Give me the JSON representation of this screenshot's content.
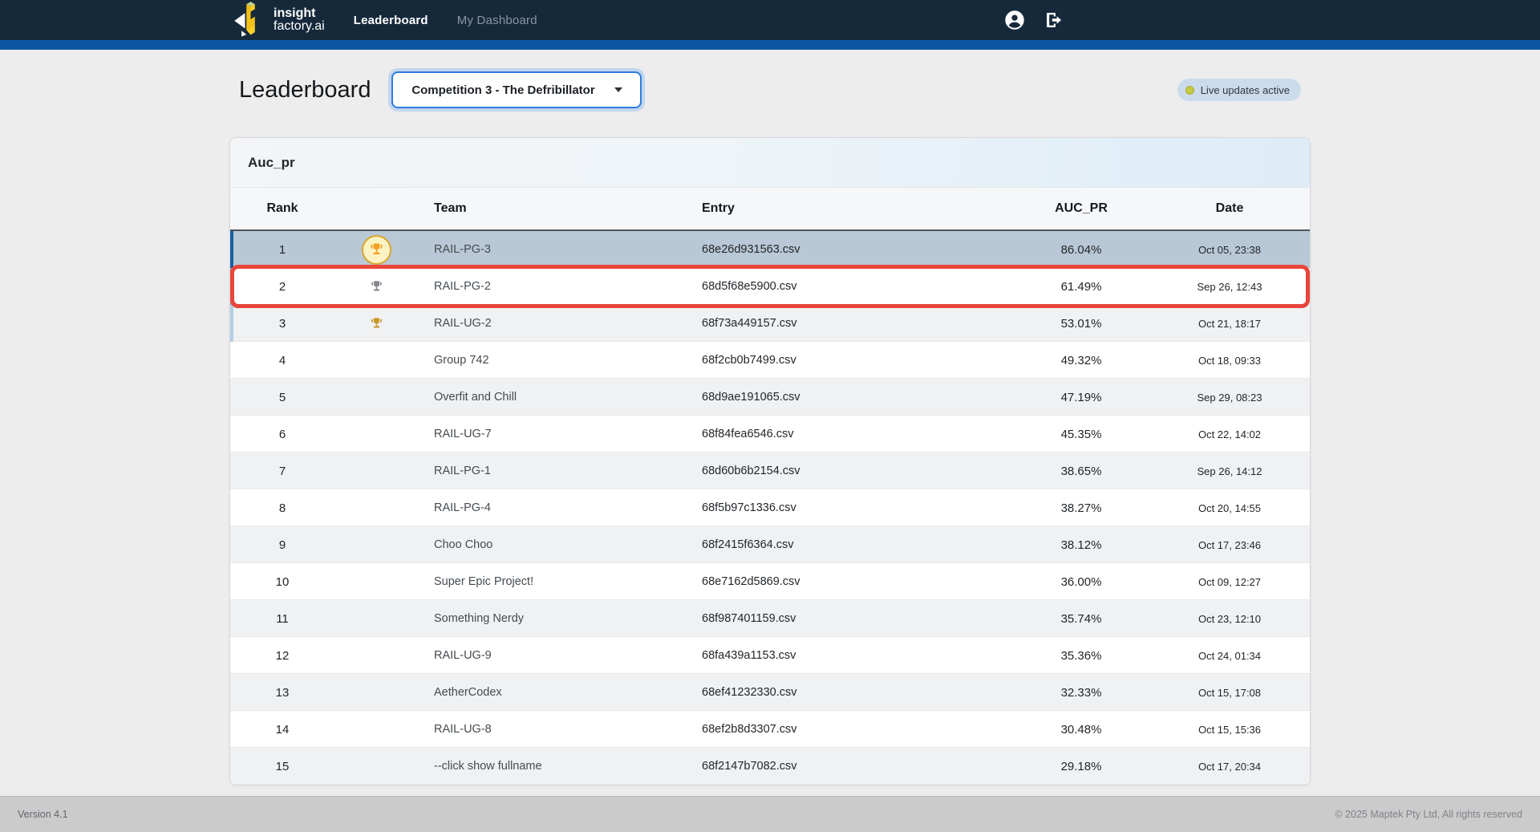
{
  "navbar": {
    "logo_line1": "insight",
    "logo_line2": "factory.ai",
    "links": [
      {
        "label": "Leaderboard",
        "active": true
      },
      {
        "label": "My Dashboard",
        "active": false
      }
    ],
    "icons": [
      "user-account-icon",
      "logout-icon"
    ]
  },
  "page": {
    "title": "Leaderboard",
    "competition_select": {
      "value": "Competition 3 - The Defribillator"
    },
    "live_badge": "Live updates active"
  },
  "table": {
    "card_title": "Auc_pr",
    "columns": [
      "Rank",
      "Team",
      "Entry",
      "AUC_PR",
      "Date"
    ],
    "rows": [
      {
        "rank": "1",
        "trophy": "gold",
        "team": "RAIL-PG-3",
        "entry": "68e26d931563.csv",
        "auc": "86.04%",
        "date": "Oct 05, 23:38",
        "selected": true,
        "outlined": false,
        "accent": "blue"
      },
      {
        "rank": "2",
        "trophy": "silver",
        "team": "RAIL-PG-2",
        "entry": "68d5f68e5900.csv",
        "auc": "61.49%",
        "date": "Sep 26, 12:43",
        "selected": false,
        "outlined": true,
        "accent": "silver"
      },
      {
        "rank": "3",
        "trophy": "bronze",
        "team": "RAIL-UG-2",
        "entry": "68f73a449157.csv",
        "auc": "53.01%",
        "date": "Oct 21, 18:17",
        "selected": false,
        "outlined": false,
        "accent": "lightblue"
      },
      {
        "rank": "4",
        "trophy": null,
        "team": "Group 742",
        "entry": "68f2cb0b7499.csv",
        "auc": "49.32%",
        "date": "Oct 18, 09:33",
        "selected": false,
        "outlined": false,
        "accent": null
      },
      {
        "rank": "5",
        "trophy": null,
        "team": "Overfit and Chill",
        "entry": "68d9ae191065.csv",
        "auc": "47.19%",
        "date": "Sep 29, 08:23",
        "selected": false,
        "outlined": false,
        "accent": null
      },
      {
        "rank": "6",
        "trophy": null,
        "team": "RAIL-UG-7",
        "entry": "68f84fea6546.csv",
        "auc": "45.35%",
        "date": "Oct 22, 14:02",
        "selected": false,
        "outlined": false,
        "accent": null
      },
      {
        "rank": "7",
        "trophy": null,
        "team": "RAIL-PG-1",
        "entry": "68d60b6b2154.csv",
        "auc": "38.65%",
        "date": "Sep 26, 14:12",
        "selected": false,
        "outlined": false,
        "accent": null
      },
      {
        "rank": "8",
        "trophy": null,
        "team": "RAIL-PG-4",
        "entry": "68f5b97c1336.csv",
        "auc": "38.27%",
        "date": "Oct 20, 14:55",
        "selected": false,
        "outlined": false,
        "accent": null
      },
      {
        "rank": "9",
        "trophy": null,
        "team": "Choo Choo",
        "entry": "68f2415f6364.csv",
        "auc": "38.12%",
        "date": "Oct 17, 23:46",
        "selected": false,
        "outlined": false,
        "accent": null
      },
      {
        "rank": "10",
        "trophy": null,
        "team": "Super Epic Project!",
        "entry": "68e7162d5869.csv",
        "auc": "36.00%",
        "date": "Oct 09, 12:27",
        "selected": false,
        "outlined": false,
        "accent": null
      },
      {
        "rank": "11",
        "trophy": null,
        "team": "Something Nerdy",
        "entry": "68f987401159.csv",
        "auc": "35.74%",
        "date": "Oct 23, 12:10",
        "selected": false,
        "outlined": false,
        "accent": null
      },
      {
        "rank": "12",
        "trophy": null,
        "team": "RAIL-UG-9",
        "entry": "68fa439a1153.csv",
        "auc": "35.36%",
        "date": "Oct 24, 01:34",
        "selected": false,
        "outlined": false,
        "accent": null
      },
      {
        "rank": "13",
        "trophy": null,
        "team": "AetherCodex",
        "entry": "68ef41232330.csv",
        "auc": "32.33%",
        "date": "Oct 15, 17:08",
        "selected": false,
        "outlined": false,
        "accent": null
      },
      {
        "rank": "14",
        "trophy": null,
        "team": "RAIL-UG-8",
        "entry": "68ef2b8d3307.csv",
        "auc": "30.48%",
        "date": "Oct 15, 15:36",
        "selected": false,
        "outlined": false,
        "accent": null
      },
      {
        "rank": "15",
        "trophy": null,
        "team": "--click show fullname",
        "entry": "68f2147b7082.csv",
        "auc": "29.18%",
        "date": "Oct 17, 20:34",
        "selected": false,
        "outlined": false,
        "accent": null
      }
    ]
  },
  "footer": {
    "version": "Version 4.1",
    "copyright": "© 2025 Maptek Pty Ltd, All rights reserved"
  },
  "colors": {
    "navbar_bg": "#16293b",
    "accent_bar": "#0b57a5",
    "selected_row_bg": "#b9c8d6",
    "selected_row_border": "#16609f",
    "highlight_outline": "#e8453b",
    "live_badge_bg": "#cbdbeb",
    "live_dot": "#c6cb43",
    "select_border": "#2e7cdf",
    "trophy_gold": "#f0a125",
    "trophy_silver": "#85898d",
    "trophy_bronze": "#c8992b"
  }
}
